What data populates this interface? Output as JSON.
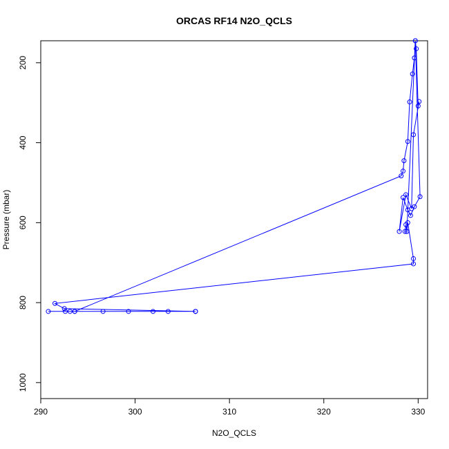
{
  "chart_data": {
    "type": "line",
    "title": "ORCAS RF14 N2O_QCLS",
    "xlabel": "N2O_QCLS",
    "ylabel": "Pressure (mbar)",
    "xlim": [
      290,
      331
    ],
    "ylim": [
      1040,
      145
    ],
    "y_reversed": true,
    "x_ticks": [
      290,
      300,
      310,
      320,
      330
    ],
    "y_ticks": [
      200,
      400,
      600,
      800,
      1000
    ],
    "grid": false,
    "legend": "none",
    "series": [
      {
        "color": "#0000ff",
        "marker": "open-circle",
        "points": [
          [
            306.4,
            822
          ],
          [
            303.5,
            822
          ],
          [
            301.9,
            822
          ],
          [
            299.3,
            822
          ],
          [
            296.6,
            822
          ],
          [
            293.6,
            822
          ],
          [
            293.1,
            822
          ],
          [
            290.8,
            822
          ],
          [
            292.6,
            822
          ],
          [
            306.4,
            822
          ],
          [
            293.6,
            822
          ],
          [
            328.2,
            483
          ],
          [
            328.4,
            471
          ],
          [
            328.5,
            445
          ],
          [
            328.9,
            397
          ],
          [
            329.1,
            298
          ],
          [
            329.4,
            228
          ],
          [
            329.6,
            188
          ],
          [
            329.7,
            145
          ],
          [
            329.8,
            165
          ],
          [
            330.0,
            308
          ],
          [
            330.1,
            297
          ],
          [
            329.5,
            380
          ],
          [
            329.3,
            565
          ],
          [
            328.7,
            530
          ],
          [
            328.0,
            622
          ],
          [
            328.4,
            537
          ],
          [
            328.9,
            568
          ],
          [
            329.2,
            582
          ],
          [
            329.6,
            560
          ],
          [
            330.2,
            535
          ],
          [
            329.7,
            145
          ],
          [
            328.8,
            622
          ],
          [
            328.7,
            605
          ],
          [
            328.6,
            622
          ],
          [
            328.8,
            622
          ],
          [
            328.9,
            600
          ],
          [
            329.5,
            690
          ],
          [
            329.5,
            703
          ],
          [
            291.5,
            802
          ],
          [
            292.5,
            815
          ],
          [
            306.4,
            822
          ]
        ]
      }
    ]
  }
}
